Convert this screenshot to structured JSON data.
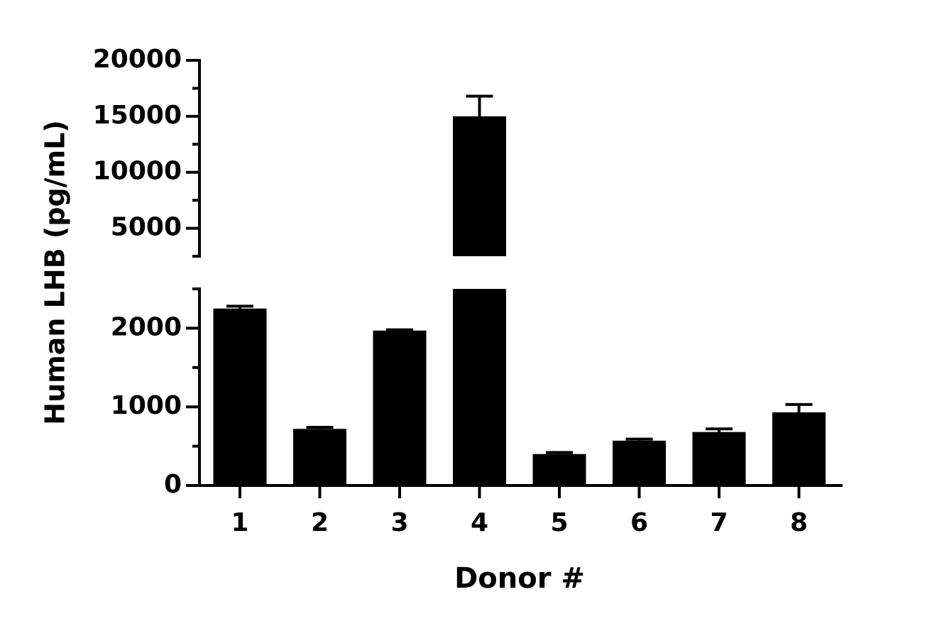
{
  "chart_data": {
    "type": "bar",
    "x_title": "Donor #",
    "y_title": "Human LHB (pg/mL)",
    "categories": [
      "1",
      "2",
      "3",
      "4",
      "5",
      "6",
      "7",
      "8"
    ],
    "values": [
      2250,
      720,
      1970,
      15000,
      400,
      570,
      680,
      930
    ],
    "errors": [
      30,
      20,
      10,
      1800,
      20,
      20,
      40,
      100
    ],
    "color": "#000000",
    "y_segments": [
      {
        "ylim": [
          0,
          2500
        ],
        "yticks": [
          0,
          1000,
          2000
        ],
        "minor_yticks": [
          500,
          1500,
          2500
        ]
      },
      {
        "ylim": [
          2500,
          20000
        ],
        "yticks": [
          5000,
          10000,
          15000,
          20000
        ],
        "minor_yticks": [
          2500,
          7500,
          12500,
          17500
        ]
      }
    ]
  }
}
